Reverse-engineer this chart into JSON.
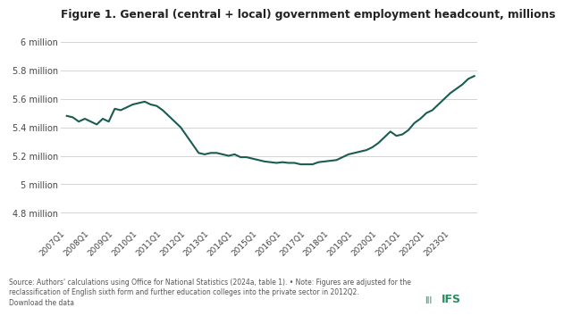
{
  "title": "Figure 1. General (central + local) government employment headcount, millions",
  "line_color": "#1a5c52",
  "background_color": "#ffffff",
  "grid_color": "#cccccc",
  "x_labels": [
    "2007Q1",
    "2008Q1",
    "2009Q1",
    "2010Q1",
    "2011Q1",
    "2012Q1",
    "2013Q1",
    "2014Q1",
    "2015Q1",
    "2016Q1",
    "2017Q1",
    "2018Q1",
    "2019Q1",
    "2020Q1",
    "2021Q1",
    "2022Q1",
    "2023Q1"
  ],
  "ytick_labels": [
    "4.8 million",
    "5 million",
    "5.2 million",
    "5.4 million",
    "5.6 million",
    "5.8 million",
    "6 million"
  ],
  "ytick_values": [
    4.8,
    5.0,
    5.2,
    5.4,
    5.6,
    5.8,
    6.0
  ],
  "ylim": [
    4.7,
    6.1
  ],
  "source_text": "Source: Authors' calculations using Office for National Statistics (2024a, table 1). • Note: Figures are adjusted for the\nreclassification of English sixth form and further education colleges into the private sector in 2012Q2.\nDownload the data",
  "y_data": [
    5.48,
    5.47,
    5.44,
    5.46,
    5.44,
    5.42,
    5.46,
    5.44,
    5.53,
    5.52,
    5.54,
    5.56,
    5.57,
    5.58,
    5.56,
    5.55,
    5.52,
    5.48,
    5.44,
    5.4,
    5.34,
    5.28,
    5.22,
    5.21,
    5.22,
    5.22,
    5.21,
    5.2,
    5.21,
    5.19,
    5.19,
    5.18,
    5.17,
    5.16,
    5.155,
    5.15,
    5.155,
    5.15,
    5.15,
    5.14,
    5.14,
    5.14,
    5.155,
    5.16,
    5.165,
    5.17,
    5.19,
    5.21,
    5.22,
    5.23,
    5.24,
    5.26,
    5.29,
    5.33,
    5.37,
    5.34,
    5.35,
    5.38,
    5.43,
    5.46,
    5.5,
    5.52,
    5.56,
    5.6,
    5.64,
    5.67,
    5.7,
    5.74,
    5.76
  ],
  "ifs_color": "#2a8c5e",
  "source_fontsize": 5.5,
  "title_fontsize": 8.8,
  "tick_fontsize": 7.0,
  "xtick_fontsize": 6.5
}
